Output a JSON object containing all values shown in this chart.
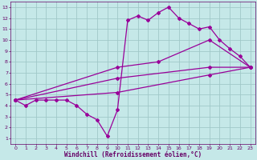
{
  "xlabel": "Windchill (Refroidissement éolien,°C)",
  "bg_color": "#c5e8e8",
  "grid_color": "#a0c8c8",
  "line_color": "#990099",
  "spine_color": "#660066",
  "xlim": [
    -0.5,
    23.5
  ],
  "ylim": [
    0.5,
    13.5
  ],
  "xticks": [
    0,
    1,
    2,
    3,
    4,
    5,
    6,
    7,
    8,
    9,
    10,
    11,
    12,
    13,
    14,
    15,
    16,
    17,
    18,
    19,
    20,
    21,
    22,
    23
  ],
  "yticks": [
    1,
    2,
    3,
    4,
    5,
    6,
    7,
    8,
    9,
    10,
    11,
    12,
    13
  ],
  "line1_x": [
    0,
    1,
    2,
    3,
    4,
    5,
    6,
    7,
    8,
    9,
    10,
    11,
    12,
    13,
    14,
    15,
    16,
    17,
    18,
    19,
    20,
    21,
    22,
    23
  ],
  "line1_y": [
    4.5,
    4.0,
    4.5,
    4.5,
    4.5,
    4.5,
    4.0,
    3.2,
    2.7,
    1.2,
    3.6,
    11.8,
    12.2,
    11.8,
    12.5,
    13.0,
    12.0,
    11.5,
    11.0,
    11.2,
    10.0,
    9.2,
    8.5,
    7.5
  ],
  "line2_x": [
    0,
    10,
    14,
    19,
    23
  ],
  "line2_y": [
    4.5,
    7.5,
    8.0,
    10.0,
    7.5
  ],
  "line3_x": [
    0,
    10,
    19,
    23
  ],
  "line3_y": [
    4.5,
    6.5,
    7.5,
    7.5
  ],
  "line4_x": [
    0,
    10,
    19,
    23
  ],
  "line4_y": [
    4.5,
    5.2,
    6.8,
    7.5
  ],
  "markersize": 2.0,
  "linewidth": 0.9,
  "tick_fontsize": 4.5,
  "xlabel_fontsize": 5.5
}
